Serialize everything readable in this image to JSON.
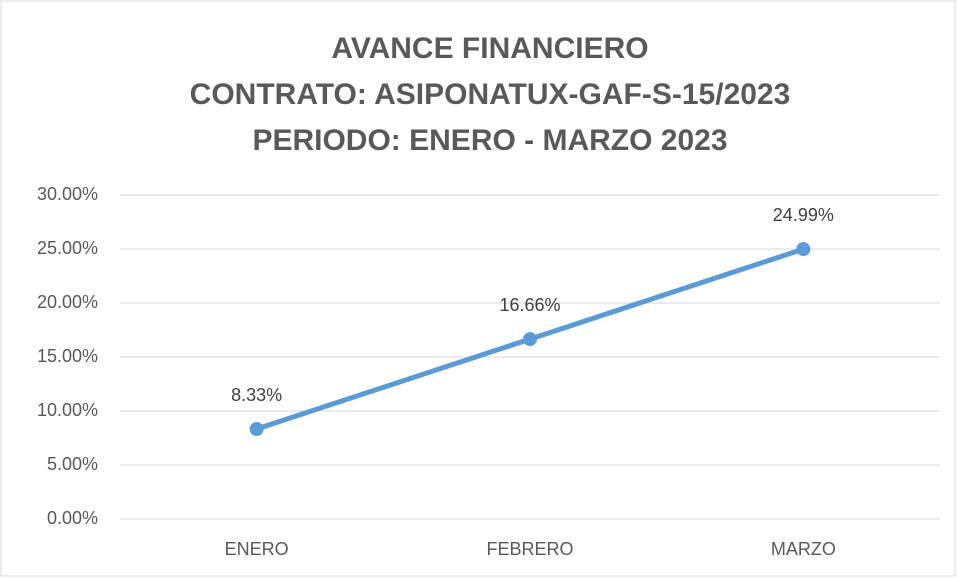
{
  "chart_data": {
    "type": "line",
    "title": [
      "AVANCE FINANCIERO",
      "CONTRATO: ASIPONATUX-GAF-S-15/2023",
      "PERIODO: ENERO - MARZO 2023"
    ],
    "categories": [
      "ENERO",
      "FEBRERO",
      "MARZO"
    ],
    "values": [
      8.33,
      16.66,
      24.99
    ],
    "value_labels": [
      "8.33%",
      "16.66%",
      "24.99%"
    ],
    "color": "#5b9bd5",
    "ylim": [
      0,
      30
    ],
    "yticks": [
      {
        "value": 0,
        "label": "0.00%"
      },
      {
        "value": 5,
        "label": "5.00%"
      },
      {
        "value": 10,
        "label": "10.00%"
      },
      {
        "value": 15,
        "label": "15.00%"
      },
      {
        "value": 20,
        "label": "20.00%"
      },
      {
        "value": 25,
        "label": "25.00%"
      },
      {
        "value": 30,
        "label": "30.00%"
      }
    ],
    "grid": true
  }
}
